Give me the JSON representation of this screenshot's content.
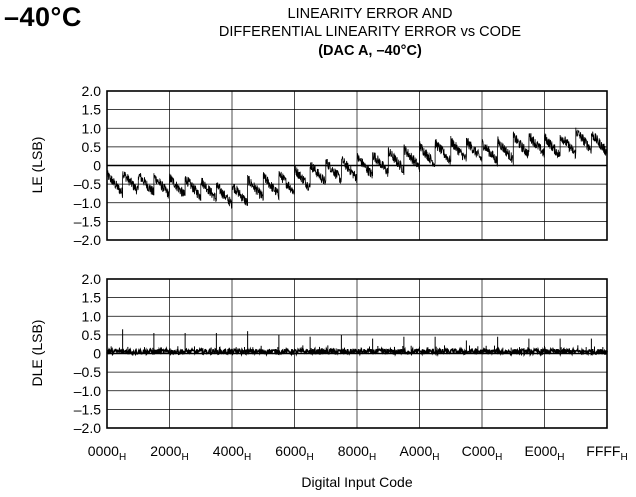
{
  "header": {
    "temperature": "–40°C",
    "title_line1": "LINEARITY ERROR AND",
    "title_line2": "DIFFERENTIAL LINEARITY ERROR vs CODE",
    "title_line3": "(DAC A, –40°C)"
  },
  "colors": {
    "trace": "#000000",
    "grid": "#000000",
    "background": "#ffffff"
  },
  "chart_data": [
    {
      "type": "line",
      "ylabel": "LE (LSB)",
      "ylim": [
        -2.0,
        2.0
      ],
      "yticks": [
        2.0,
        1.5,
        1.0,
        0.5,
        0,
        -0.5,
        -1.0,
        -1.5,
        -2.0
      ],
      "ytick_labels": [
        "2.0",
        "1.5",
        "1.0",
        "0.5",
        "0",
        "–0.5",
        "–1.0",
        "–1.5",
        "–2.0"
      ],
      "xlim": [
        0,
        65535
      ],
      "grid": true,
      "series": [
        {
          "x": [
            0,
            2048,
            4096,
            6144,
            8192,
            10240,
            12288,
            14336,
            16384,
            18432,
            20480,
            22528,
            24576,
            26624,
            28672,
            30720,
            32768,
            34816,
            36864,
            38912,
            40960,
            43008,
            45056,
            47104,
            49152,
            51200,
            53248,
            55296,
            57344,
            59392,
            61440,
            63488,
            65535
          ],
          "y": [
            -0.55,
            -0.5,
            -0.45,
            -0.6,
            -0.55,
            -0.65,
            -0.6,
            -0.75,
            -0.9,
            -0.7,
            -0.6,
            -0.55,
            -0.45,
            -0.3,
            -0.2,
            -0.15,
            -0.1,
            0.0,
            0.05,
            0.15,
            0.2,
            0.3,
            0.35,
            0.4,
            0.35,
            0.3,
            0.45,
            0.55,
            0.5,
            0.45,
            0.6,
            0.7,
            0.45
          ]
        }
      ]
    },
    {
      "type": "line",
      "ylabel": "DLE (LSB)",
      "xlabel": "Digital Input Code",
      "ylim": [
        -2.0,
        2.0
      ],
      "yticks": [
        2.0,
        1.5,
        1.0,
        0.5,
        0,
        -0.5,
        -1.0,
        -1.5,
        -2.0
      ],
      "ytick_labels": [
        "2.0",
        "1.5",
        "1.0",
        "0.5",
        "0",
        "–0.5",
        "–1.0",
        "–1.5",
        "–2.0"
      ],
      "xlim": [
        0,
        65535
      ],
      "grid": true,
      "xtick_labels": [
        "0000",
        "2000",
        "4000",
        "6000",
        "8000",
        "A000",
        "C000",
        "E000",
        "FFFF"
      ],
      "xtick_subscript": "H",
      "series": [
        {
          "x": [
            2048,
            6144,
            10240,
            14336,
            18432,
            22528,
            26624,
            30720,
            34816,
            38912,
            43008,
            47104,
            51200,
            55296,
            59392,
            63488
          ],
          "y": [
            0.65,
            0.55,
            0.55,
            0.55,
            0.6,
            0.5,
            0.45,
            0.5,
            0.4,
            0.45,
            0.45,
            0.35,
            0.45,
            0.4,
            0.4,
            0.4
          ]
        }
      ]
    }
  ]
}
